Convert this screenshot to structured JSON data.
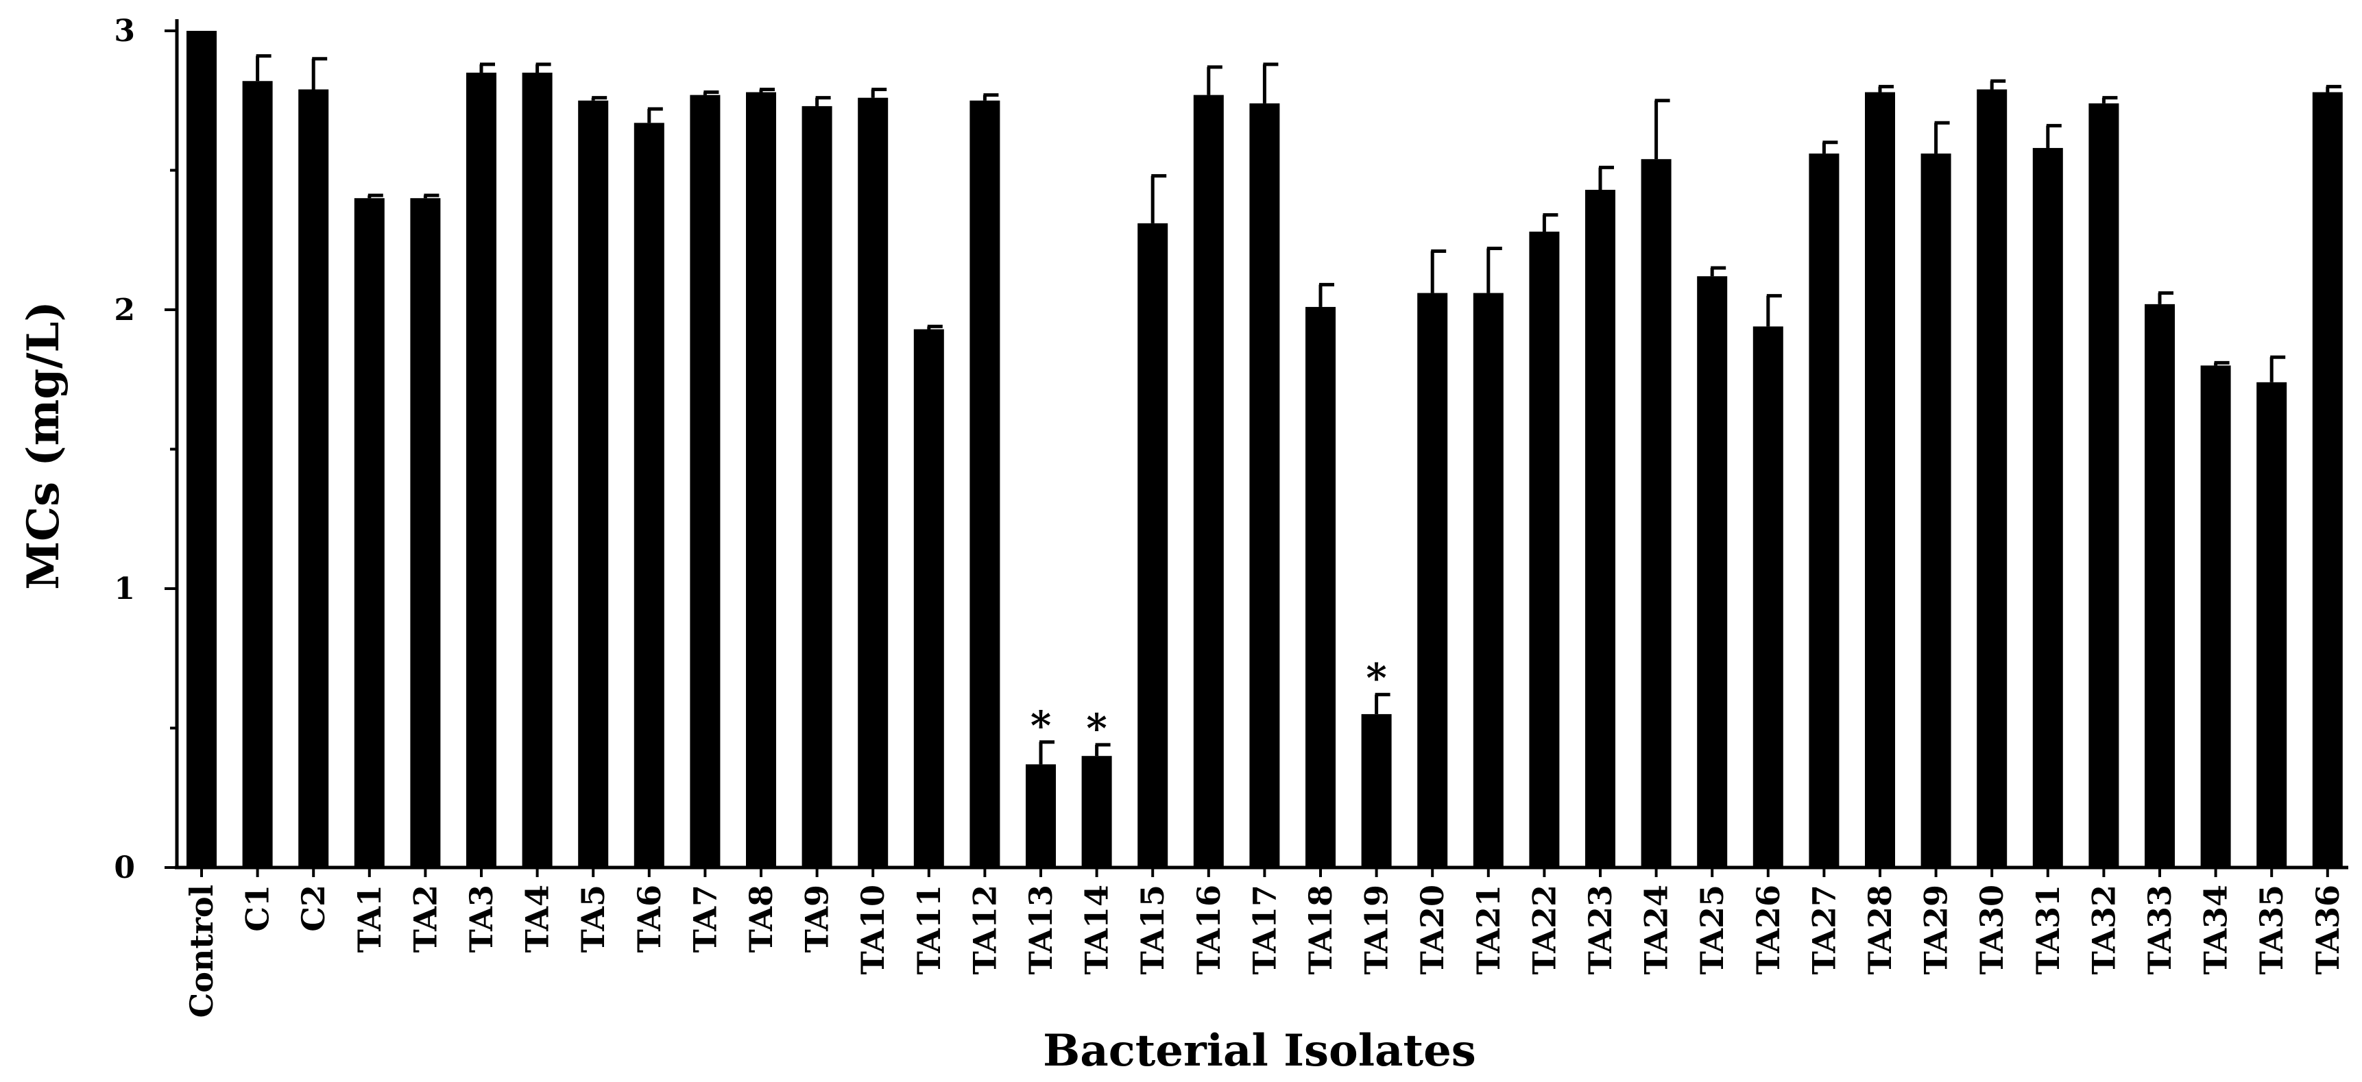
{
  "chart_data": {
    "type": "bar",
    "xlabel": "Bacterial Isolates",
    "ylabel": "MCs (mg/L)",
    "ylim": [
      0,
      3
    ],
    "yticks": [
      0,
      1,
      2,
      3
    ],
    "grid": false,
    "categories": [
      "Control",
      "C1",
      "C2",
      "TA1",
      "TA2",
      "TA3",
      "TA4",
      "TA5",
      "TA6",
      "TA7",
      "TA8",
      "TA9",
      "TA10",
      "TA11",
      "TA12",
      "TA13",
      "TA14",
      "TA15",
      "TA16",
      "TA17",
      "TA18",
      "TA19",
      "TA20",
      "TA21",
      "TA22",
      "TA23",
      "TA24",
      "TA25",
      "TA26",
      "TA27",
      "TA28",
      "TA29",
      "TA30",
      "TA31",
      "TA32",
      "TA33",
      "TA34",
      "TA35",
      "TA36"
    ],
    "values": [
      3.0,
      2.82,
      2.79,
      2.4,
      2.4,
      2.85,
      2.85,
      2.75,
      2.67,
      2.77,
      2.78,
      2.73,
      2.76,
      1.93,
      2.75,
      0.37,
      0.4,
      2.31,
      2.77,
      2.74,
      2.01,
      0.55,
      2.06,
      2.06,
      2.28,
      2.43,
      2.54,
      2.12,
      1.94,
      2.56,
      2.78,
      2.56,
      2.79,
      2.58,
      2.74,
      2.02,
      1.8,
      1.74,
      2.78
    ],
    "errors": [
      0.0,
      0.09,
      0.11,
      0.01,
      0.01,
      0.03,
      0.03,
      0.01,
      0.05,
      0.01,
      0.01,
      0.03,
      0.03,
      0.01,
      0.02,
      0.08,
      0.04,
      0.17,
      0.1,
      0.14,
      0.08,
      0.07,
      0.15,
      0.16,
      0.06,
      0.08,
      0.21,
      0.03,
      0.11,
      0.04,
      0.02,
      0.11,
      0.03,
      0.08,
      0.02,
      0.04,
      0.01,
      0.09,
      0.02
    ],
    "annotations": [
      {
        "category": "TA13",
        "text": "*"
      },
      {
        "category": "TA14",
        "text": "*"
      },
      {
        "category": "TA19",
        "text": "*"
      }
    ]
  }
}
